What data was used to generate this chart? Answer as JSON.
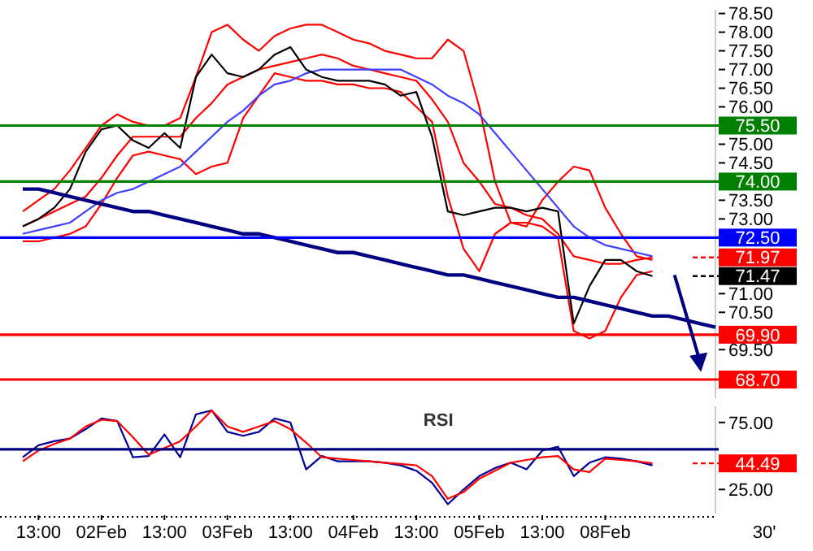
{
  "chart_data": [
    {
      "type": "line",
      "ylim": [
        68.2,
        78.6
      ],
      "tick_labels": "y",
      "grid": false,
      "categories": [
        null,
        null,
        null,
        null,
        null,
        null,
        null,
        null,
        null,
        null,
        null,
        null,
        null,
        null,
        null,
        null,
        null,
        null,
        null,
        null,
        null,
        null,
        null,
        null,
        null,
        null,
        null,
        null,
        null,
        null,
        null,
        null,
        null,
        null,
        null,
        null,
        null,
        null,
        null,
        null,
        null,
        null,
        null,
        null,
        null
      ],
      "yticks": [
        {
          "value": 69.5,
          "label": "69.50"
        },
        {
          "value": 70.5,
          "label": "70.50"
        },
        {
          "value": 71,
          "label": "71.00"
        },
        {
          "value": 73,
          "label": "73.00"
        },
        {
          "value": 73.5,
          "label": "73.50"
        },
        {
          "value": 74.5,
          "label": "74.50"
        },
        {
          "value": 75,
          "label": "75.00"
        },
        {
          "value": 76,
          "label": "76.00"
        },
        {
          "value": 76.5,
          "label": "76.50"
        },
        {
          "value": 77,
          "label": "77.00"
        },
        {
          "value": 77.5,
          "label": "77.50"
        },
        {
          "value": 78,
          "label": "78.00"
        },
        {
          "value": 78.5,
          "label": "78.50"
        }
      ],
      "series": [
        {
          "color": "#ff0000",
          "values": [
            73.2,
            73.5,
            73.8,
            74.3,
            74.9,
            75.5,
            75.8,
            75.6,
            75.5,
            75.5,
            75.7,
            76.8,
            78.0,
            78.2,
            77.8,
            77.5,
            77.9,
            78.1,
            78.2,
            78.2,
            78.0,
            77.8,
            77.7,
            77.5,
            77.4,
            77.3,
            77.3,
            77.8,
            77.5,
            76.0,
            74.0,
            72.9,
            72.8,
            73.5,
            74.0,
            74.4,
            74.3,
            73.3,
            72.6,
            72.0,
            71.9,
            null,
            null,
            null,
            null
          ]
        },
        {
          "color": "#ff0000",
          "values": [
            72.4,
            72.4,
            72.5,
            72.6,
            72.8,
            73.4,
            74.1,
            74.7,
            74.8,
            74.7,
            74.6,
            74.2,
            74.4,
            74.5,
            75.7,
            76.3,
            76.9,
            76.8,
            76.7,
            76.7,
            76.6,
            76.6,
            76.5,
            76.5,
            76.4,
            76.0,
            75.6,
            73.6,
            72.2,
            71.6,
            72.6,
            72.9,
            72.9,
            72.8,
            72.5,
            70.0,
            69.8,
            70.0,
            70.9,
            71.5,
            71.6,
            null,
            null,
            null,
            null
          ]
        },
        {
          "color": "#ff0000",
          "values": [
            72.8,
            73.0,
            73.2,
            73.4,
            73.6,
            74.1,
            74.7,
            75.2,
            75.2,
            75.2,
            75.2,
            75.7,
            76.1,
            76.6,
            76.8,
            77.0,
            77.1,
            77.2,
            77.3,
            77.4,
            77.3,
            77.1,
            77.0,
            76.9,
            76.8,
            76.7,
            76.2,
            75.6,
            74.5,
            74.0,
            73.4,
            73.3,
            73.1,
            73.0,
            72.6,
            72.0,
            71.9,
            71.8,
            71.8,
            71.9,
            71.97,
            null,
            null,
            null,
            null
          ]
        },
        {
          "color": "#4040ff",
          "values": [
            72.6,
            72.7,
            72.8,
            72.9,
            73.2,
            73.5,
            73.7,
            73.8,
            74.0,
            74.2,
            74.4,
            74.8,
            75.2,
            75.6,
            75.9,
            76.3,
            76.6,
            76.7,
            76.9,
            77.0,
            77.0,
            77.0,
            77.0,
            77.0,
            77.0,
            76.8,
            76.6,
            76.3,
            76.1,
            75.8,
            75.3,
            74.8,
            74.3,
            73.8,
            73.3,
            72.8,
            72.5,
            72.3,
            72.2,
            72.1,
            72.0,
            null,
            null,
            null,
            null
          ]
        },
        {
          "color": "#000000",
          "values": [
            72.8,
            73.0,
            73.3,
            73.8,
            74.8,
            75.4,
            75.5,
            75.1,
            74.9,
            75.3,
            74.9,
            76.8,
            77.4,
            76.9,
            76.8,
            77.0,
            77.4,
            77.6,
            77.0,
            76.8,
            76.7,
            76.7,
            76.7,
            76.6,
            76.3,
            76.4,
            75.2,
            73.2,
            73.1,
            73.2,
            73.3,
            73.3,
            73.2,
            73.3,
            73.2,
            70.2,
            71.2,
            71.9,
            71.9,
            71.6,
            71.47,
            null,
            null,
            null,
            null
          ]
        },
        {
          "color": "#000080",
          "values": [
            73.8,
            73.8,
            73.7,
            73.6,
            73.5,
            73.4,
            73.3,
            73.2,
            73.2,
            73.1,
            73.0,
            72.9,
            72.8,
            72.7,
            72.6,
            72.6,
            72.5,
            72.4,
            72.3,
            72.2,
            72.1,
            72.1,
            72.0,
            71.9,
            71.8,
            71.7,
            71.6,
            71.5,
            71.5,
            71.4,
            71.3,
            71.2,
            71.1,
            71.0,
            70.9,
            70.9,
            70.8,
            70.7,
            70.6,
            70.5,
            70.4,
            70.4,
            70.3,
            70.2,
            70.1
          ]
        }
      ],
      "ref_lines": [
        {
          "axis": "y",
          "value": 71.97,
          "label": "71.97",
          "color": "#ff0000",
          "line_style": "dashed"
        },
        {
          "axis": "y",
          "value": 71.47,
          "label": "71.47",
          "color": "#000000",
          "line_style": "dashed"
        },
        {
          "axis": "y",
          "value": 75.5,
          "label": "75.50",
          "color": "#008000"
        },
        {
          "axis": "y",
          "value": 74.0,
          "label": "74.00",
          "color": "#008000"
        },
        {
          "axis": "y",
          "value": 72.5,
          "label": "72.50",
          "color": "#0000ff"
        },
        {
          "axis": "y",
          "value": 69.9,
          "label": "69.90",
          "color": "#ff0000"
        },
        {
          "axis": "y",
          "value": 68.7,
          "label": "68.70",
          "color": "#ff0000"
        }
      ]
    },
    {
      "type": "line",
      "title": "RSI",
      "ylim": [
        7,
        87
      ],
      "grid": false,
      "categories": [
        null,
        "13:00",
        null,
        null,
        null,
        "02Feb",
        null,
        null,
        null,
        "13:00",
        null,
        null,
        null,
        "03Feb",
        null,
        null,
        null,
        "13:00",
        null,
        null,
        null,
        "04Feb",
        null,
        null,
        null,
        "13:00",
        null,
        null,
        null,
        "05Feb",
        null,
        null,
        null,
        "13:00",
        null,
        null,
        null,
        "08Feb",
        null,
        null,
        null,
        null,
        null,
        null,
        null
      ],
      "yticks": [
        {
          "value": 25,
          "label": "25.00"
        },
        {
          "value": 75,
          "label": "75.00"
        }
      ],
      "annotations": [
        "30'"
      ],
      "series": [
        {
          "color": "#000099",
          "values": [
            49,
            58,
            61,
            63,
            70,
            78,
            76,
            49,
            50,
            66,
            49,
            81,
            84,
            68,
            65,
            68,
            78,
            75,
            40,
            50,
            46,
            46,
            46,
            45,
            43,
            39,
            30,
            14,
            25,
            35,
            41,
            45,
            40,
            54,
            57,
            35,
            45,
            49,
            48,
            46,
            43,
            null,
            null,
            null,
            null
          ]
        },
        {
          "color": "#ff0000",
          "values": [
            46,
            54,
            59,
            63,
            72,
            77,
            76,
            64,
            51,
            56,
            61,
            72,
            84,
            72,
            68,
            72,
            76,
            70,
            60,
            49,
            48,
            47,
            46,
            45,
            44,
            43,
            35,
            18,
            23,
            33,
            39,
            45,
            47,
            49,
            50,
            40,
            38,
            48,
            47,
            46,
            44.49,
            null,
            null,
            null,
            null
          ]
        }
      ],
      "ref_lines": [
        {
          "axis": "y",
          "value": 55,
          "color": "#000080"
        },
        {
          "axis": "y",
          "value": 44.49,
          "label": "44.49",
          "color": "#ff0000",
          "line_style": "dashed"
        }
      ]
    }
  ]
}
